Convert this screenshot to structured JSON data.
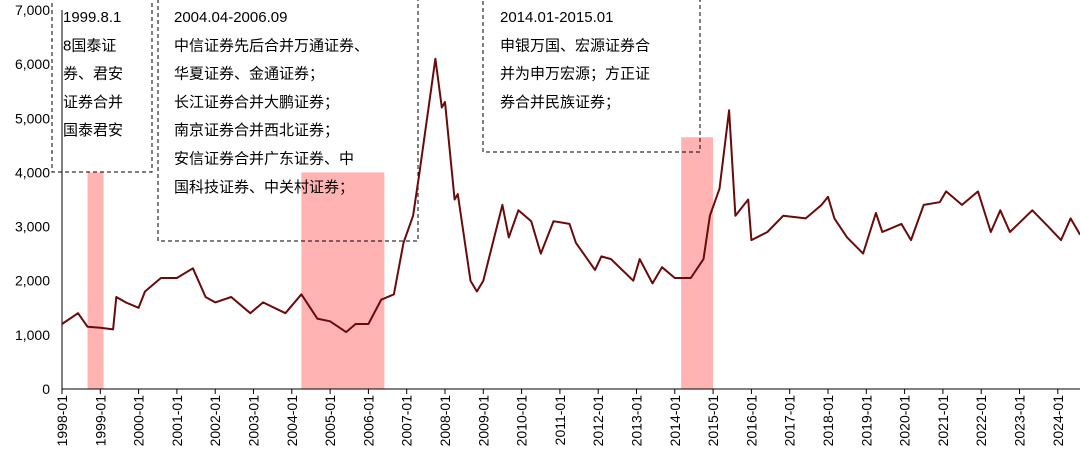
{
  "chart_data": {
    "type": "line",
    "x": [
      "1998-01",
      "1998-06",
      "1998-09",
      "1999-01",
      "1999-05",
      "1999-06",
      "1999-09",
      "2000-01",
      "2000-03",
      "2000-08",
      "2001-01",
      "2001-06",
      "2001-10",
      "2002-01",
      "2002-06",
      "2002-12",
      "2003-04",
      "2003-11",
      "2004-04",
      "2004-09",
      "2005-01",
      "2005-06",
      "2005-09",
      "2006-01",
      "2006-05",
      "2006-09",
      "2006-12",
      "2007-03",
      "2007-05",
      "2007-10",
      "2007-12",
      "2008-01",
      "2008-04",
      "2008-05",
      "2008-09",
      "2008-11",
      "2009-01",
      "2009-07",
      "2009-09",
      "2009-12",
      "2010-04",
      "2010-07",
      "2010-11",
      "2011-04",
      "2011-06",
      "2011-12",
      "2012-02",
      "2012-05",
      "2012-12",
      "2013-02",
      "2013-06",
      "2013-09",
      "2014-01",
      "2014-06",
      "2014-10",
      "2014-12",
      "2015-03",
      "2015-06",
      "2015-08",
      "2015-12",
      "2016-01",
      "2016-06",
      "2016-11",
      "2017-06",
      "2017-11",
      "2018-01",
      "2018-03",
      "2018-07",
      "2018-12",
      "2019-04",
      "2019-06",
      "2019-12",
      "2020-03",
      "2020-07",
      "2020-12",
      "2021-02",
      "2021-07",
      "2021-12",
      "2022-04",
      "2022-07",
      "2022-10",
      "2023-05",
      "2023-10",
      "2024-02",
      "2024-05",
      "2024-08"
    ],
    "series": [
      {
        "color": "#6b0a0a",
        "values": [
          1200,
          1400,
          1150,
          1130,
          1100,
          1700,
          1600,
          1500,
          1800,
          2050,
          2050,
          2230,
          1700,
          1600,
          1700,
          1400,
          1600,
          1400,
          1750,
          1300,
          1250,
          1050,
          1200,
          1200,
          1650,
          1750,
          2700,
          3200,
          4000,
          6100,
          5200,
          5300,
          3500,
          3600,
          2000,
          1800,
          2000,
          3400,
          2800,
          3300,
          3100,
          2500,
          3100,
          3050,
          2700,
          2200,
          2450,
          2400,
          2000,
          2400,
          1950,
          2250,
          2050,
          2050,
          2400,
          3200,
          3700,
          5150,
          3200,
          3500,
          2750,
          2900,
          3200,
          3150,
          3400,
          3550,
          3150,
          2800,
          2500,
          3250,
          2900,
          3050,
          2750,
          3400,
          3450,
          3650,
          3400,
          3650,
          2900,
          3300,
          2900,
          3300,
          3000,
          2750,
          3150,
          2850
        ]
      }
    ],
    "xlim": [
      "1998-01",
      "2024-08"
    ],
    "xticks": [
      "1998-01",
      "1999-01",
      "2000-01",
      "2001-01",
      "2002-01",
      "2003-01",
      "2004-01",
      "2005-01",
      "2006-01",
      "2007-01",
      "2008-01",
      "2009-01",
      "2010-01",
      "2011-01",
      "2012-01",
      "2013-01",
      "2014-01",
      "2015-01",
      "2016-01",
      "2017-01",
      "2018-01",
      "2019-01",
      "2020-01",
      "2021-01",
      "2022-01",
      "2023-01",
      "2024-01"
    ],
    "ylim": [
      0,
      7000
    ],
    "yticks": [
      0,
      {
        "value": 1000,
        "label": "1,000"
      },
      {
        "value": 2000,
        "label": "2,000"
      },
      {
        "value": 3000,
        "label": "3,000"
      },
      {
        "value": 4000,
        "label": "4,000"
      },
      {
        "value": 5000,
        "label": "5,000"
      },
      {
        "value": 6000,
        "label": "6,000"
      },
      {
        "value": 7000,
        "label": "7,000"
      }
    ],
    "highlights": [
      {
        "start": "1998-09",
        "end": "1999-02",
        "ymax": 4000,
        "color": "#ffb3b3"
      },
      {
        "start": "2004-04",
        "end": "2006-06",
        "ymax": 4000,
        "color": "#ffb3b3"
      },
      {
        "start": "2014-03",
        "end": "2015-01",
        "ymax": 4650,
        "color": "#ffb3b3"
      }
    ],
    "annotations": [
      {
        "lines": [
          "1999.8.1",
          "8国泰证",
          "券、君安",
          "证券合并",
          "国泰君安"
        ]
      },
      {
        "lines": [
          "2004.04-2006.09",
          "中信证券先后合并万通证券、",
          "华夏证券、金通证券；",
          "长江证券合并大鹏证券；",
          "南京证券合并西北证券；",
          "安信证券合并广东证券、中",
          "国科技证券、中关村证券；"
        ]
      },
      {
        "lines": [
          "2014.01-2015.01",
          "申银万国、宏源证券合",
          "并为申万宏源；方正证",
          "券合并民族证券；"
        ]
      }
    ]
  }
}
